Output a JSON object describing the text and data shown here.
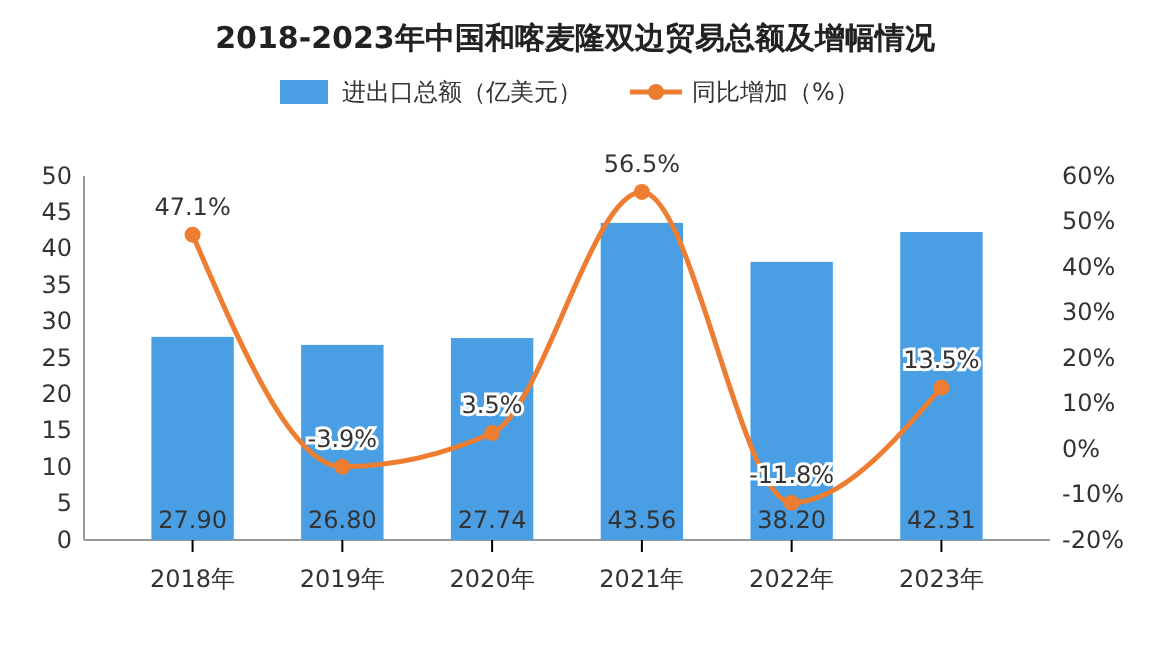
{
  "chart_data": {
    "type": "bar",
    "title": "2018-2023年中国和喀麦隆双边贸易总额及增幅情况",
    "categories": [
      "2018年",
      "2019年",
      "2020年",
      "2021年",
      "2022年",
      "2023年"
    ],
    "series": [
      {
        "name": "进出口总额（亿美元）",
        "color": "#4a9ee3",
        "values": [
          27.9,
          26.8,
          27.74,
          43.56,
          38.2,
          42.31
        ],
        "value_labels": [
          "27.90",
          "26.80",
          "27.74",
          "43.56",
          "38.20",
          "42.31"
        ]
      },
      {
        "name": "同比增加（%）",
        "type": "line",
        "axis": "y2",
        "color": "#ed7d31",
        "marker": "circle",
        "values": [
          47.1,
          -3.9,
          3.5,
          56.5,
          -11.8,
          13.5
        ],
        "value_labels": [
          "47.1%",
          "-3.9%",
          "3.5%",
          "56.5%",
          "-11.8%",
          "13.5%"
        ]
      }
    ],
    "ylim": [
      0,
      50
    ],
    "yticks": [
      0,
      5,
      10,
      15,
      20,
      25,
      30,
      35,
      40,
      45,
      50
    ],
    "y2lim": [
      -20,
      60
    ],
    "y2ticks": [
      {
        "value": -20,
        "label": "-20%"
      },
      {
        "value": -10,
        "label": "-10%"
      },
      {
        "value": 0,
        "label": "0%"
      },
      {
        "value": 10,
        "label": "10%"
      },
      {
        "value": 20,
        "label": "20%"
      },
      {
        "value": 30,
        "label": "30%"
      },
      {
        "value": 40,
        "label": "40%"
      },
      {
        "value": 50,
        "label": "50%"
      },
      {
        "value": 60,
        "label": "60%"
      }
    ],
    "legend": "top"
  }
}
